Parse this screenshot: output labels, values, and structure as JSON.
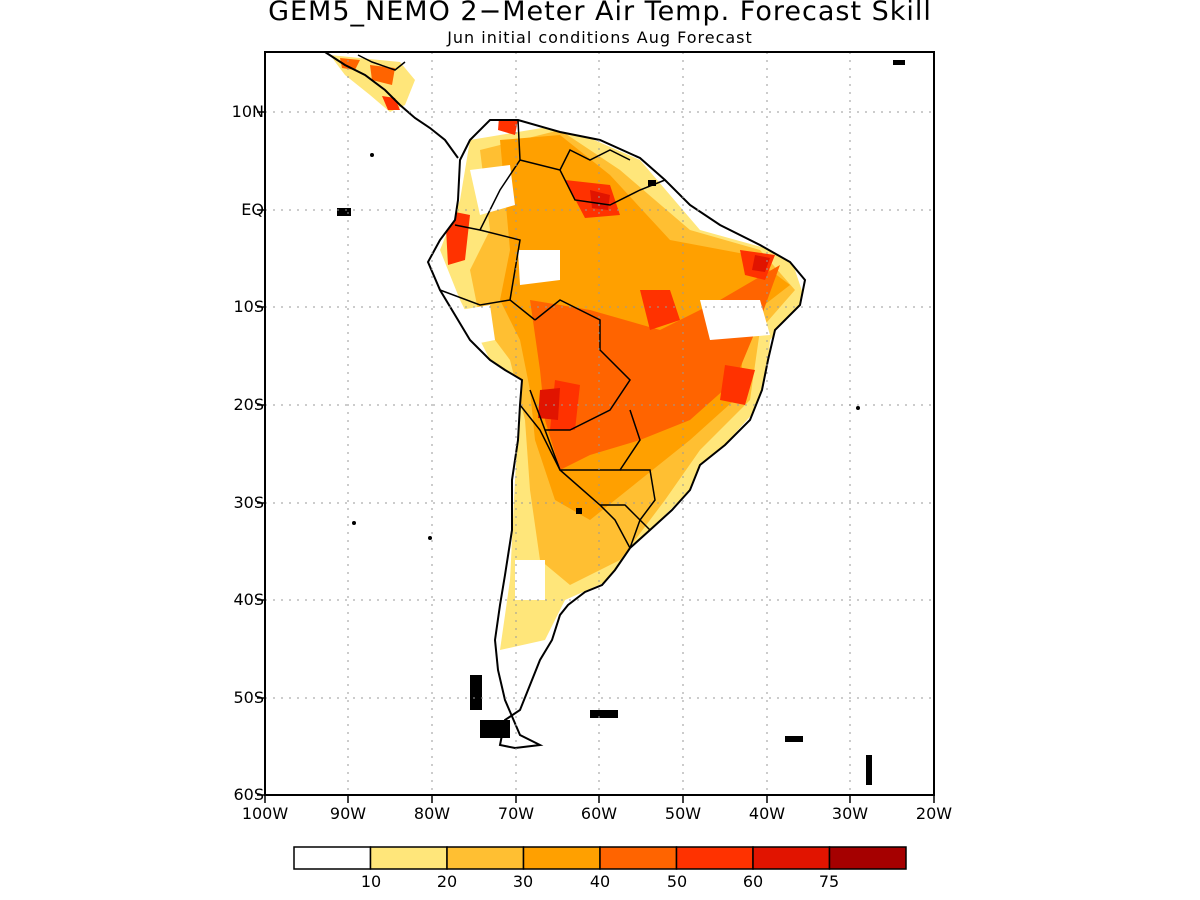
{
  "title": "GEM5_NEMO 2−Meter Air Temp. Forecast Skill",
  "subtitle": "Jun initial conditions  Aug Forecast",
  "lat_labels": [
    "10N",
    "EQ",
    "10S",
    "20S",
    "30S",
    "40S",
    "50S",
    "60S"
  ],
  "lon_labels": [
    "100W",
    "90W",
    "80W",
    "70W",
    "60W",
    "50W",
    "40W",
    "30W",
    "20W"
  ],
  "colorbar": {
    "colors": [
      "#ffffff",
      "#ffe67a",
      "#ffbf32",
      "#ffa000",
      "#ff6400",
      "#ff3200",
      "#e11400",
      "#a50000"
    ],
    "labels": [
      "10",
      "20",
      "30",
      "40",
      "50",
      "60",
      "75"
    ]
  }
}
